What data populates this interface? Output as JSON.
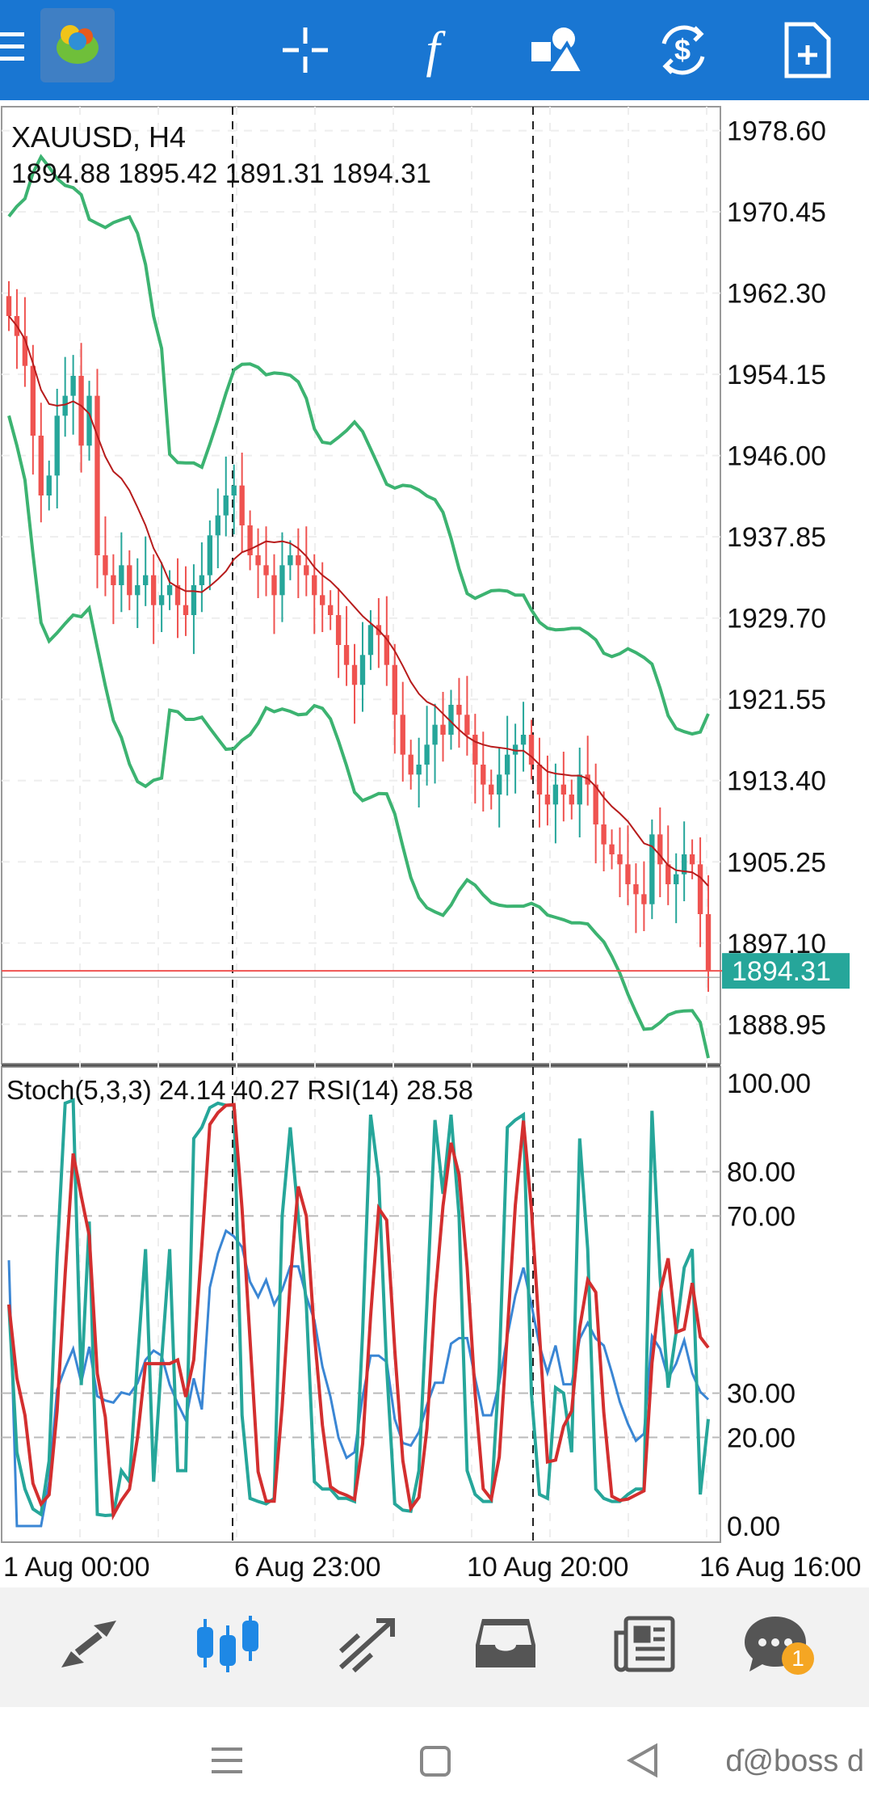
{
  "toolbar": {
    "icons": [
      "menu-icon",
      "app-logo-icon",
      "crosshair-icon",
      "function-icon",
      "objects-icon",
      "trade-icon",
      "new-order-icon"
    ],
    "function_glyph": "f"
  },
  "chart": {
    "symbol_timeframe": "XAUUSD, H4",
    "ohlc": "1894.88 1895.42 1891.31 1894.31",
    "current_price": "1894.31",
    "price_axis": [
      "1978.60",
      "1970.45",
      "1962.30",
      "1954.15",
      "1946.00",
      "1937.85",
      "1929.70",
      "1921.55",
      "1913.40",
      "1905.25",
      "1897.10",
      "1888.95"
    ],
    "indicator_header": "Stoch(5,3,3) 24.14 40.27 RSI(14) 28.58",
    "indicator_axis": [
      "100.00",
      "80.00",
      "70.00",
      "30.00",
      "20.00",
      "0.00"
    ],
    "time_axis": [
      "1 Aug 00:00",
      "6 Aug 23:00",
      "10 Aug 20:00",
      "16 Aug 16:00"
    ],
    "colors": {
      "bull": "#26a69a",
      "bear": "#ef5350",
      "bollinger": "#3cb371",
      "ma": "#b71c1c",
      "stoch_main": "#26a69a",
      "stoch_signal": "#d32f2f",
      "rsi": "#3a86d4",
      "price_tag": "#26a69a"
    }
  },
  "chart_data": {
    "type": "candlestick",
    "title": "XAUUSD, H4",
    "ylim": [
      1885,
      1981
    ],
    "y_ticks": [
      1978.6,
      1970.45,
      1962.3,
      1954.15,
      1946.0,
      1937.85,
      1929.7,
      1921.55,
      1913.4,
      1905.25,
      1897.1,
      1888.95
    ],
    "x_ticks": [
      "1 Aug 00:00",
      "6 Aug 23:00",
      "10 Aug 20:00",
      "16 Aug 16:00"
    ],
    "candles_close_series": [
      1960,
      1958,
      1955,
      1948,
      1942,
      1944,
      1950,
      1952,
      1954,
      1947,
      1952,
      1936,
      1934,
      1933,
      1935,
      1932,
      1933,
      1934,
      1931,
      1932,
      1933,
      1931,
      1930,
      1933,
      1934,
      1938,
      1940,
      1942,
      1943,
      1939,
      1936,
      1935,
      1934,
      1932,
      1935,
      1936,
      1935,
      1934,
      1932,
      1931,
      1930,
      1927,
      1925,
      1923,
      1926,
      1929,
      1928,
      1925,
      1920,
      1916,
      1914,
      1915,
      1917,
      1919,
      1918,
      1921,
      1920,
      1918,
      1915,
      1913,
      1912,
      1914,
      1916,
      1917,
      1918,
      1915,
      1912,
      1911,
      1913,
      1912,
      1911,
      1914,
      1913,
      1909,
      1907,
      1906,
      1905,
      1903,
      1902,
      1901,
      1908,
      1905,
      1903,
      1904,
      1906,
      1905,
      1900,
      1894.31
    ],
    "current_price": 1894.31,
    "indicators": {
      "stoch_main_last": 24.14,
      "stoch_signal_last": 40.27,
      "rsi_last": 28.58,
      "ylim": [
        0,
        100
      ],
      "levels": [
        80,
        70,
        30,
        20
      ]
    }
  },
  "bottom_nav": {
    "items": [
      "quotes-icon",
      "chart-icon",
      "trade-icon",
      "history-icon",
      "news-icon",
      "messages-icon"
    ],
    "badge": "1"
  },
  "system_nav": {
    "watermark": "ɗ@boss d"
  }
}
